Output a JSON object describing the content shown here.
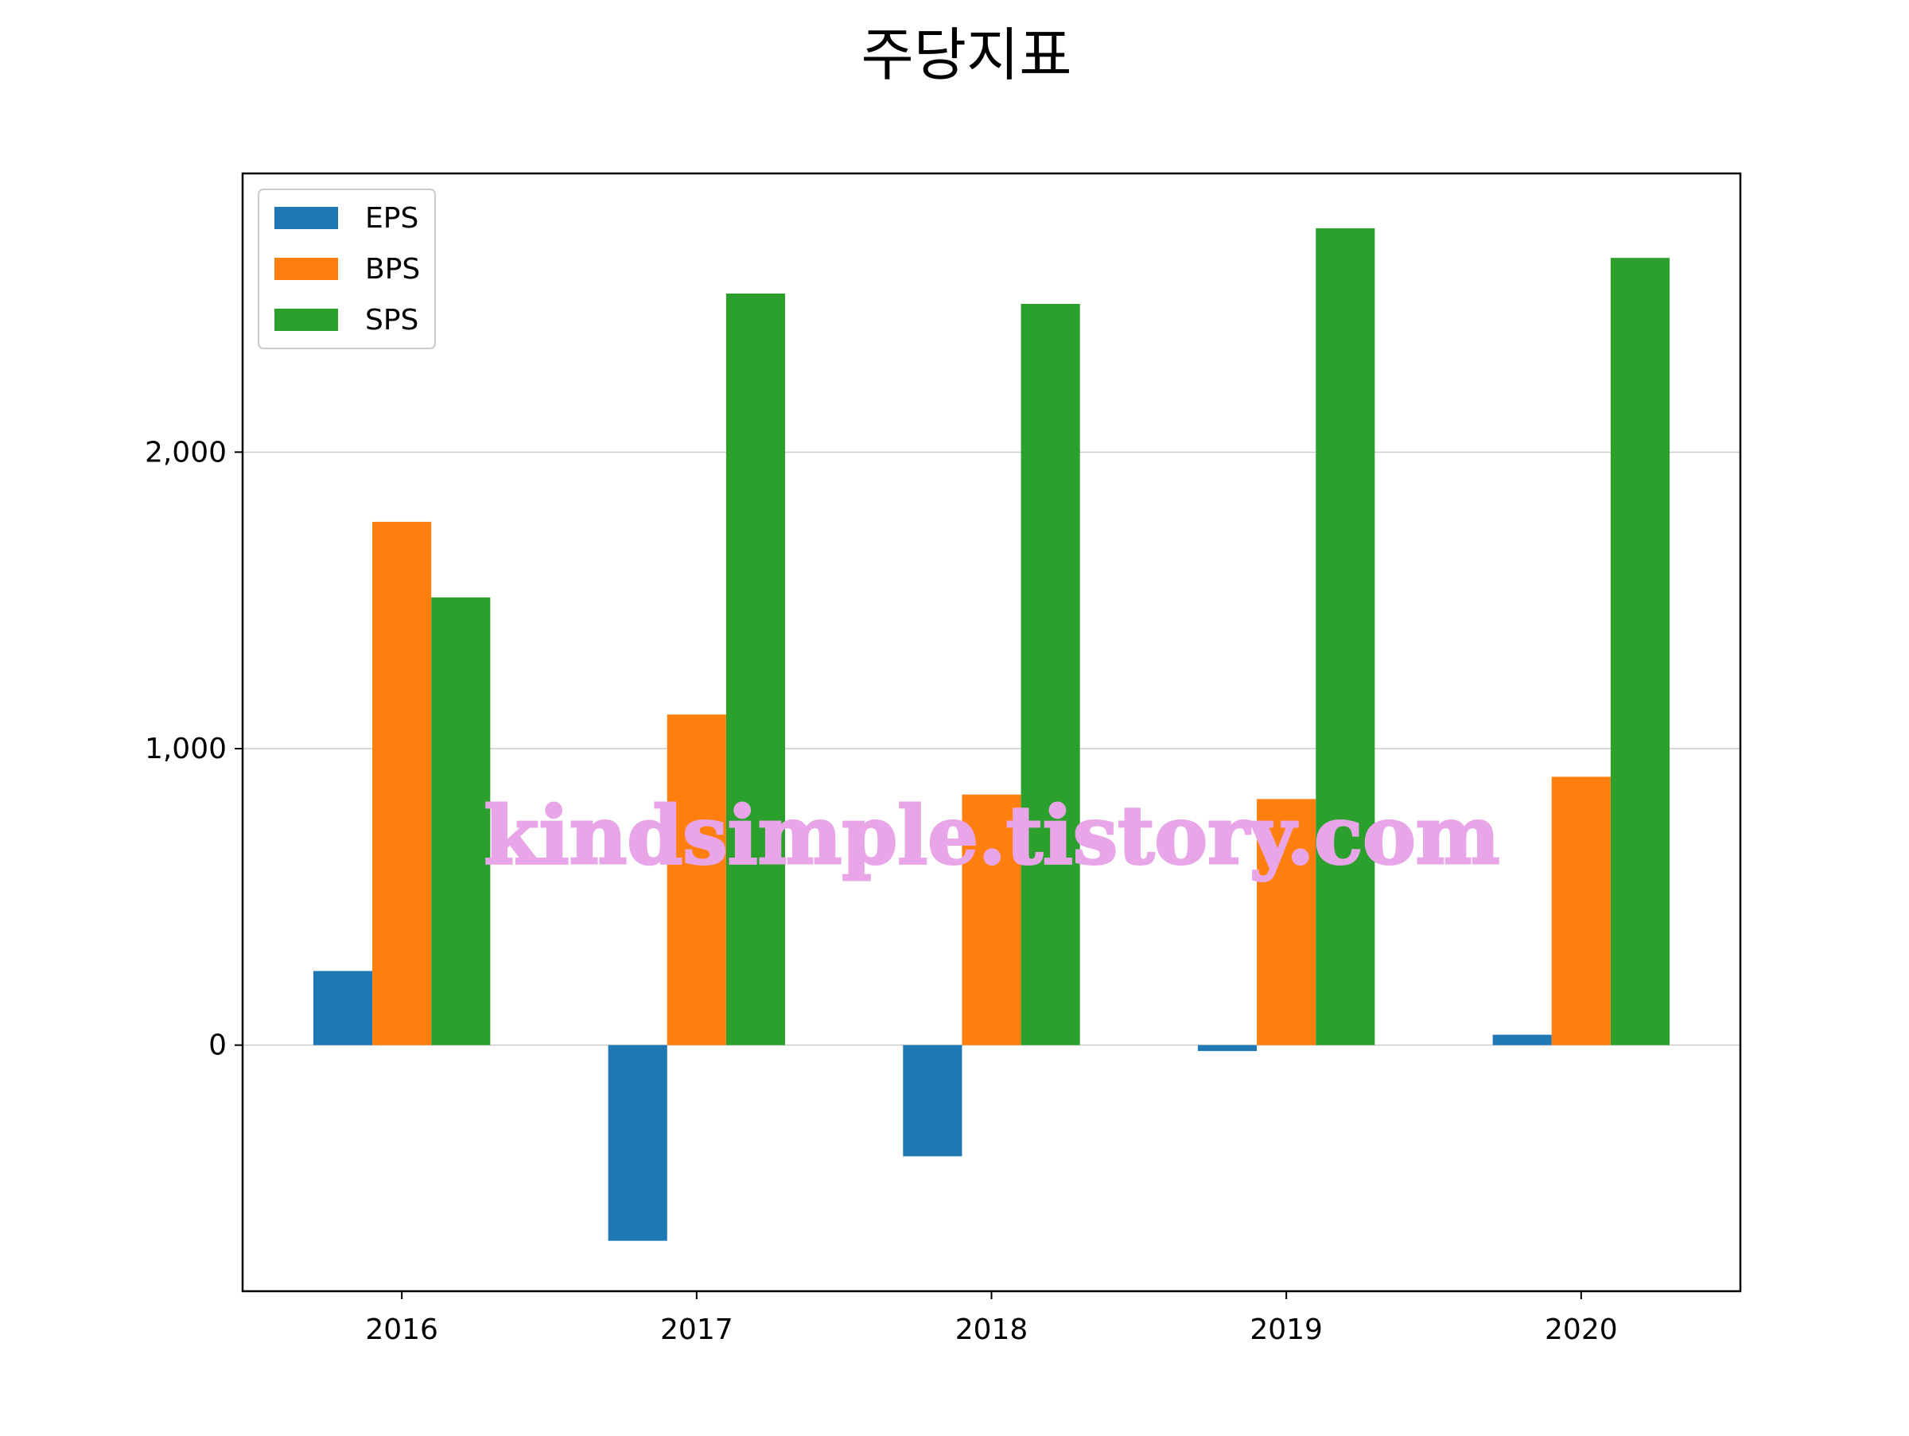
{
  "chart_data": {
    "type": "bar",
    "title": "주당지표",
    "categories": [
      "2016",
      "2017",
      "2018",
      "2019",
      "2020"
    ],
    "series": [
      {
        "name": "EPS",
        "color": "#1f77b4",
        "values": [
          250,
          -660,
          -375,
          -20,
          35
        ]
      },
      {
        "name": "BPS",
        "color": "#ff7f0e",
        "values": [
          1765,
          1115,
          845,
          830,
          905
        ]
      },
      {
        "name": "SPS",
        "color": "#2ca02c",
        "values": [
          1510,
          2535,
          2500,
          2755,
          2655
        ]
      }
    ],
    "ylim": [
      -830,
      2940
    ],
    "yticks": [
      0,
      1000,
      2000
    ],
    "ytick_labels": [
      "0",
      "1,000",
      "2,000"
    ],
    "grid": "horizontal",
    "legend_position": "top-left",
    "xlabel": "",
    "ylabel": ""
  },
  "watermark": "kindsimple.tistory.com"
}
